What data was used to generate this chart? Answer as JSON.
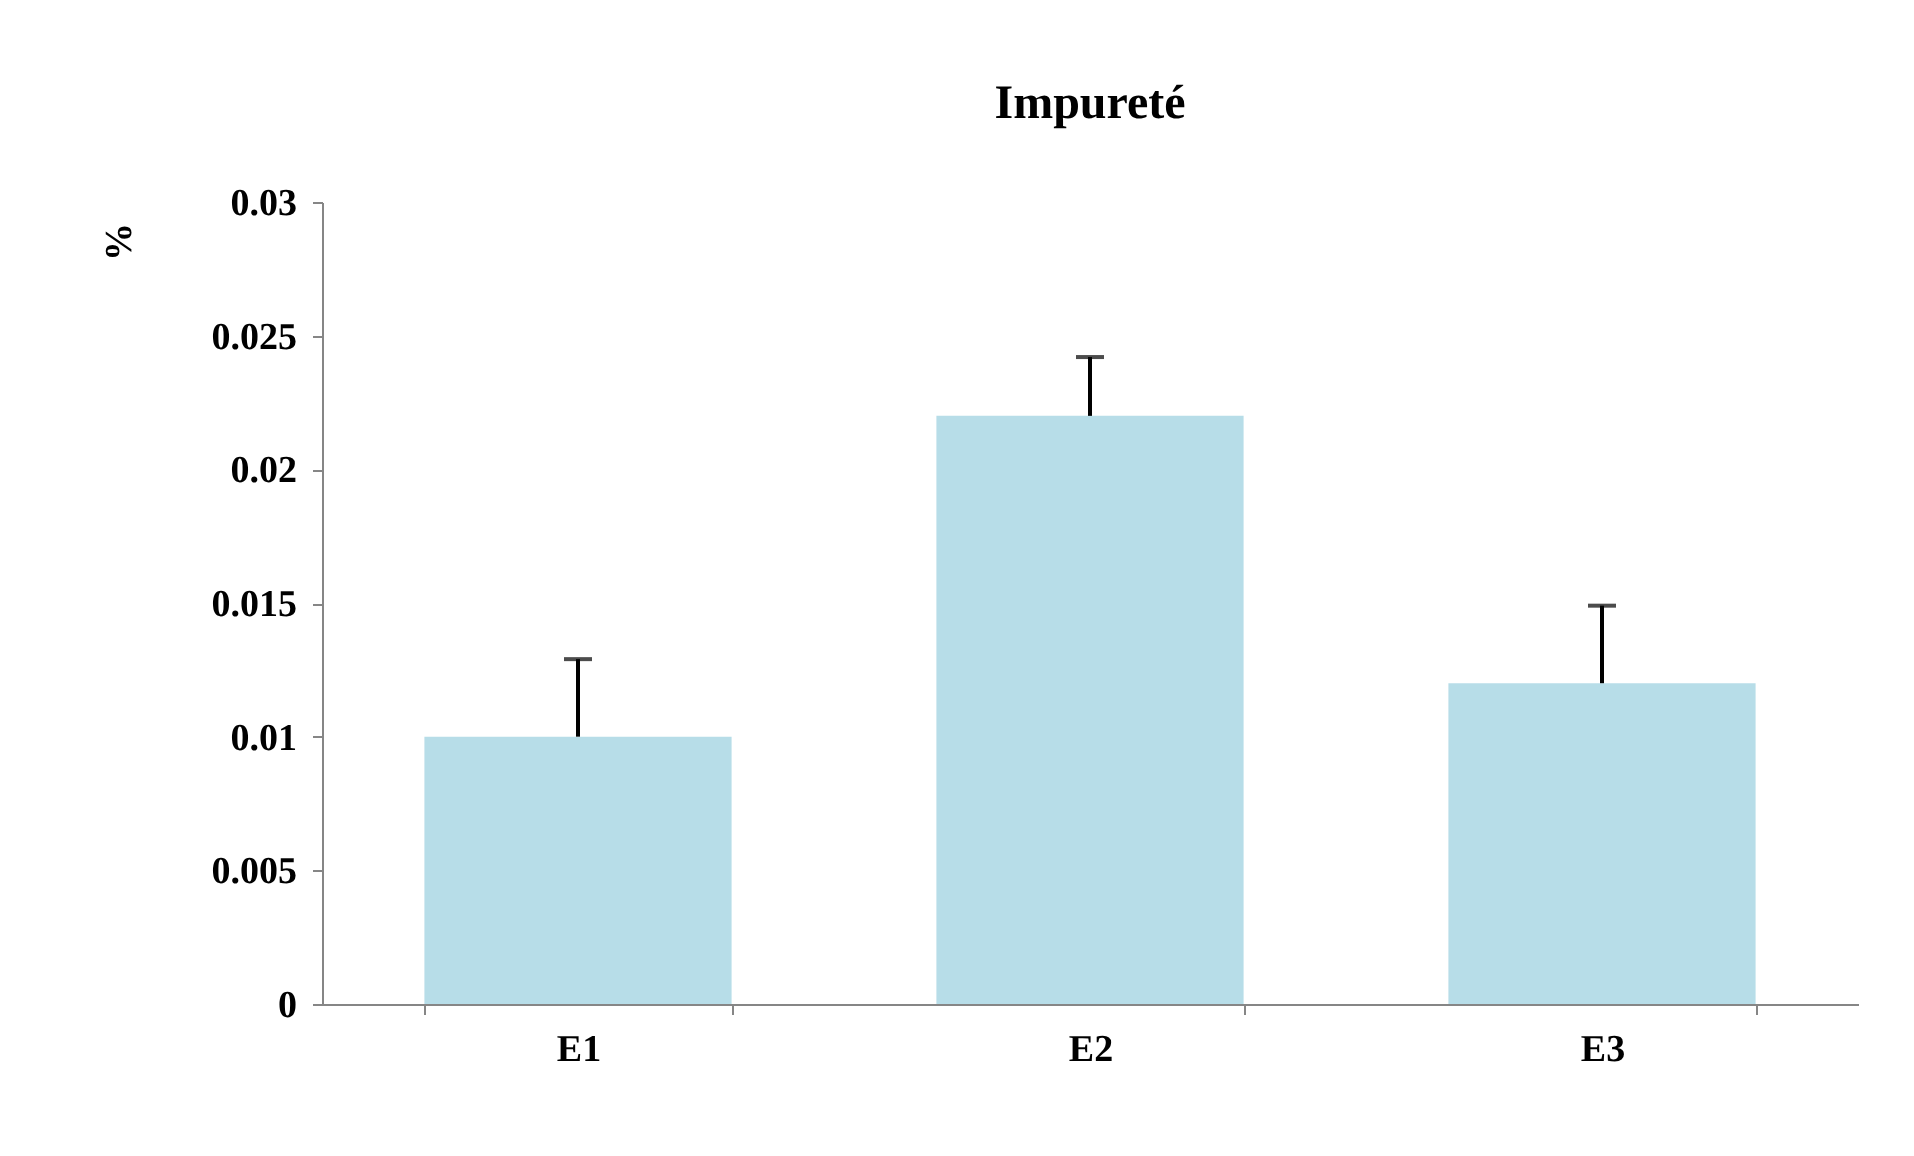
{
  "chart_data": {
    "type": "bar",
    "title": "Impureté",
    "ylabel": "%",
    "categories": [
      "E1",
      "E2",
      "E3"
    ],
    "values": [
      0.01,
      0.022,
      0.012
    ],
    "errors": [
      [
        0.01,
        0.0129
      ],
      [
        0.022,
        0.0242
      ],
      [
        0.012,
        0.0149
      ]
    ],
    "color": "#b7dde8",
    "ylim": [
      0,
      0.03
    ],
    "yticks": [
      0,
      0.005,
      0.01,
      0.015,
      0.02,
      0.025,
      0.03
    ],
    "grid": false
  }
}
